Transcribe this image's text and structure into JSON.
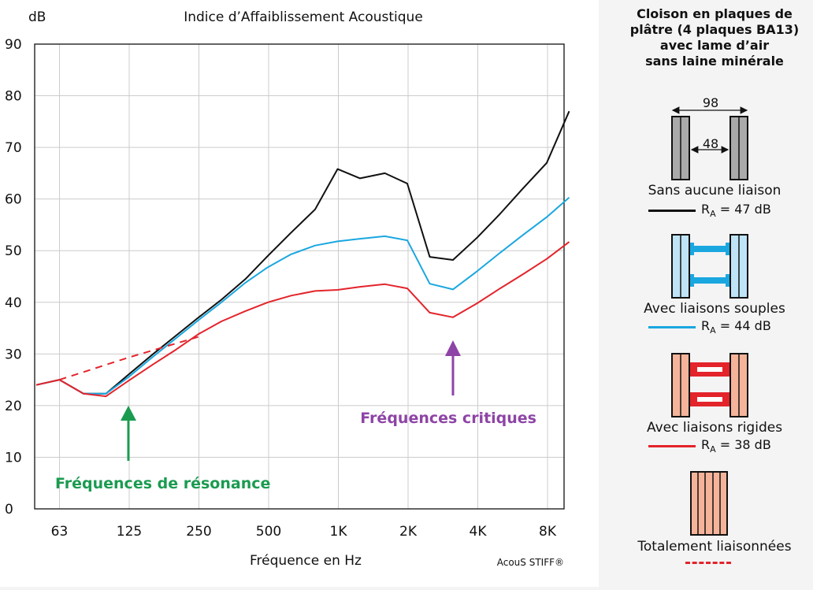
{
  "chart_data": {
    "type": "line",
    "title": "Indice d’Affaiblissement Acoustique",
    "xlabel": "Fréquence en Hz",
    "ylabel": "dB",
    "credit": "AcouS STIFF®",
    "ylim": [
      0,
      90
    ],
    "yticks": [
      0,
      10,
      20,
      30,
      40,
      50,
      60,
      70,
      80,
      90
    ],
    "categories": [
      "63",
      "125",
      "250",
      "500",
      "1K",
      "2K",
      "4K",
      "8K"
    ],
    "grid": true,
    "annotations": [
      {
        "text": "Fréquences de résonance",
        "color": "#1a9b50",
        "arrow_at_hz": 125
      },
      {
        "text": "Fréquences critiques",
        "color": "#8e44a6",
        "arrow_at_hz": 3150
      }
    ],
    "series": [
      {
        "name": "Sans aucune liaison",
        "color": "#111111",
        "dashed": false,
        "x": [
          50,
          63,
          80,
          100,
          125,
          160,
          200,
          250,
          315,
          400,
          500,
          630,
          800,
          1000,
          1250,
          1600,
          2000,
          2500,
          3150,
          4000,
          5000,
          6300,
          8000,
          10000
        ],
        "y": [
          24,
          25,
          22.3,
          22.3,
          26,
          30,
          33.5,
          37,
          40.5,
          44.5,
          49,
          53.5,
          58,
          65.8,
          64,
          65,
          63,
          48.8,
          48.2,
          52.5,
          57,
          62,
          67,
          77
        ]
      },
      {
        "name": "Avec liaisons souples",
        "color": "#1aa7e0",
        "dashed": false,
        "x": [
          50,
          63,
          80,
          100,
          125,
          160,
          200,
          250,
          315,
          400,
          500,
          630,
          800,
          1000,
          1250,
          1600,
          2000,
          2500,
          3150,
          4000,
          5000,
          6300,
          8000,
          10000
        ],
        "y": [
          24,
          25,
          22.3,
          22.3,
          25.5,
          29.5,
          33,
          36.5,
          40,
          43.8,
          46.8,
          49.3,
          51,
          51.8,
          52.3,
          52.8,
          52,
          43.6,
          42.5,
          46,
          49.5,
          53,
          56.5,
          60.3
        ]
      },
      {
        "name": "Avec liaisons rigides",
        "color": "#e3242b",
        "dashed": false,
        "x": [
          50,
          63,
          80,
          100,
          125,
          160,
          200,
          250,
          315,
          400,
          500,
          630,
          800,
          1000,
          1250,
          1600,
          2000,
          2500,
          3150,
          4000,
          5000,
          6300,
          8000,
          10000
        ],
        "y": [
          24,
          25,
          22.3,
          21.8,
          24.8,
          28,
          30.8,
          33.8,
          36.3,
          38.3,
          40,
          41.3,
          42.2,
          42.4,
          43,
          43.5,
          42.7,
          38,
          37.1,
          39.8,
          42.6,
          45.4,
          48.4,
          51.7
        ]
      },
      {
        "name": "Totalement liaisonnées",
        "color": "#e3242b",
        "dashed": true,
        "x": [
          63,
          125,
          250
        ],
        "y": [
          25,
          29.3,
          33.3
        ]
      }
    ]
  },
  "side": {
    "heading": [
      "Cloison en plaques de",
      "plâtre (4 plaques BA13)",
      "avec lame d’air",
      "sans laine minérale"
    ],
    "dim_outer": "98",
    "dim_inner": "48",
    "items": [
      {
        "caption": "Sans aucune liaison",
        "ra_value": "47 dB",
        "line_color": "#111111",
        "fill": "#aaaaaa"
      },
      {
        "caption": "Avec liaisons souples",
        "ra_value": "44 dB",
        "line_color": "#1aa7e0",
        "fill": "#bfe4f7"
      },
      {
        "caption": "Avec liaisons rigides",
        "ra_value": "38 dB",
        "line_color": "#e3242b",
        "fill": "#f5b49a"
      },
      {
        "caption": "Totalement liaisonnées",
        "ra_value": "",
        "line_color": "#e3242b",
        "fill": "#f5b49a"
      }
    ]
  },
  "ra_symbol": "R",
  "ra_sub": "A",
  "ra_eq": " = "
}
